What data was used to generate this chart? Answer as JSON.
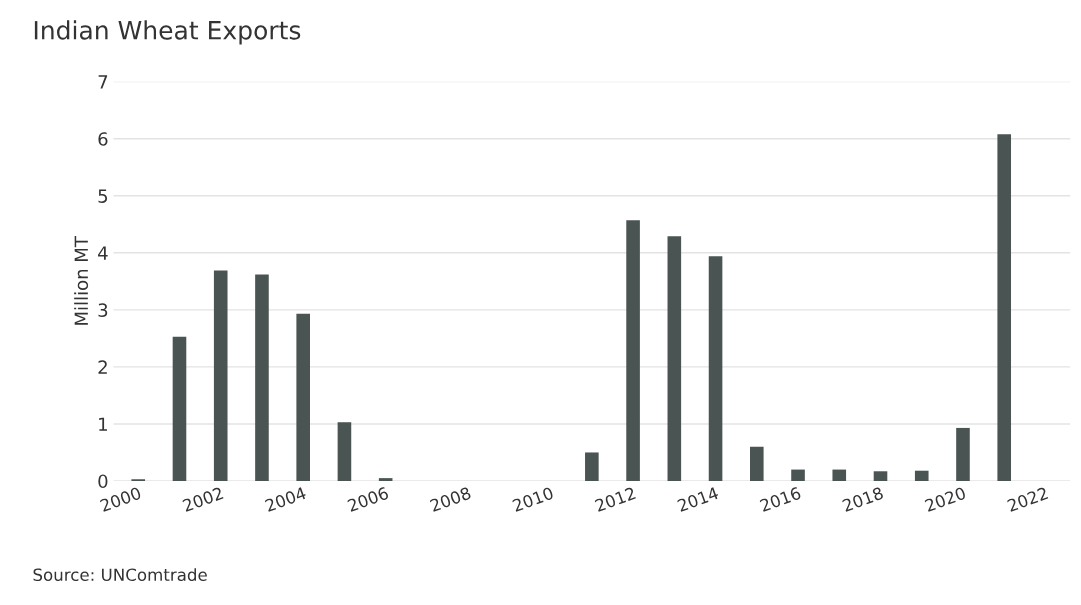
{
  "chart_data": {
    "type": "bar",
    "title": "Indian Wheat Exports",
    "ylabel": "Million MT",
    "categories": [
      "2000",
      null,
      "2002",
      null,
      "2004",
      null,
      "2006",
      null,
      "2008",
      null,
      "2010",
      null,
      "2012",
      null,
      "2014",
      null,
      "2016",
      null,
      "2018",
      null,
      "2020",
      null,
      "2022"
    ],
    "values": [
      0.03,
      2.53,
      3.69,
      3.62,
      2.93,
      1.03,
      0.05,
      0,
      0,
      0,
      0,
      0.5,
      4.57,
      4.29,
      3.94,
      0.6,
      0.2,
      0.2,
      0.17,
      0.18,
      0.93,
      6.08,
      0
    ],
    "color": "#4a5553",
    "ylim": [
      0,
      7
    ],
    "yticks": [
      0,
      1,
      2,
      3,
      4,
      5,
      6,
      7
    ],
    "grid": "y",
    "annotations": [
      "Source: UNComtrade"
    ]
  }
}
